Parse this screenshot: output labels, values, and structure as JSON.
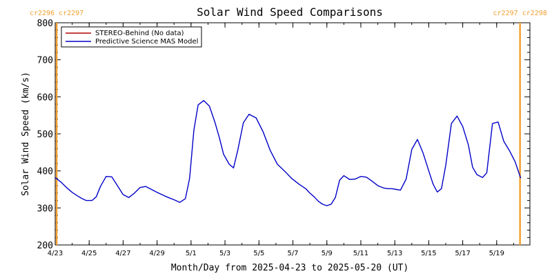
{
  "chart_data": {
    "type": "line",
    "title": "Solar Wind Speed Comparisons",
    "xlabel": "Month/Day from 2025-04-23 to 2025-05-20 (UT)",
    "ylabel": "Solar Wind Speed (km/s)",
    "ylim": [
      200,
      800
    ],
    "yticks": [
      200,
      300,
      400,
      500,
      600,
      700,
      800
    ],
    "xlim": [
      "2025-04-23",
      "2025-05-20"
    ],
    "xticks": [
      {
        "date": "2025-04-23",
        "label": "4/23"
      },
      {
        "date": "2025-04-25",
        "label": "4/25"
      },
      {
        "date": "2025-04-27",
        "label": "4/27"
      },
      {
        "date": "2025-04-29",
        "label": "4/29"
      },
      {
        "date": "2025-05-01",
        "label": "5/1"
      },
      {
        "date": "2025-05-03",
        "label": "5/3"
      },
      {
        "date": "2025-05-05",
        "label": "5/5"
      },
      {
        "date": "2025-05-07",
        "label": "5/7"
      },
      {
        "date": "2025-05-09",
        "label": "5/9"
      },
      {
        "date": "2025-05-11",
        "label": "5/11"
      },
      {
        "date": "2025-05-13",
        "label": "5/13"
      },
      {
        "date": "2025-05-15",
        "label": "5/15"
      },
      {
        "date": "2025-05-17",
        "label": "5/17"
      },
      {
        "date": "2025-05-19",
        "label": "5/19"
      }
    ],
    "legend_position": "top-left",
    "carrington_markers": [
      {
        "left_label": "cr2296",
        "right_label": "cr2297",
        "date": "2025-04-23T02:00",
        "color": "#f0a030"
      },
      {
        "left_label": "cr2297",
        "right_label": "cr2298",
        "date": "2025-05-20T09:00",
        "color": "#f0a030"
      }
    ],
    "series": [
      {
        "name": "STEREO-Behind (No data)",
        "color": "#b00000",
        "x": [],
        "y": []
      },
      {
        "name": "Predictive Science MAS Model",
        "color": "#0000c8",
        "x": [
          "2025-04-23T00:00",
          "2025-04-23T08:00",
          "2025-04-23T16:00",
          "2025-04-24T00:00",
          "2025-04-24T08:00",
          "2025-04-24T14:00",
          "2025-04-24T20:00",
          "2025-04-25T04:00",
          "2025-04-25T10:00",
          "2025-04-25T16:00",
          "2025-04-26T00:00",
          "2025-04-26T08:00",
          "2025-04-26T16:00",
          "2025-04-27T00:00",
          "2025-04-27T08:00",
          "2025-04-27T16:00",
          "2025-04-28T00:00",
          "2025-04-28T08:00",
          "2025-04-28T16:00",
          "2025-04-29T00:00",
          "2025-04-29T08:00",
          "2025-04-29T16:00",
          "2025-04-30T00:00",
          "2025-04-30T08:00",
          "2025-04-30T16:00",
          "2025-04-30T22:00",
          "2025-05-01T04:00",
          "2025-05-01T10:00",
          "2025-05-01T18:00",
          "2025-05-02T02:00",
          "2025-05-02T10:00",
          "2025-05-02T16:00",
          "2025-05-02T22:00",
          "2025-05-03T06:00",
          "2025-05-03T12:00",
          "2025-05-03T18:00",
          "2025-05-04T02:00",
          "2025-05-04T10:00",
          "2025-05-04T20:00",
          "2025-05-05T06:00",
          "2025-05-05T16:00",
          "2025-05-06T02:00",
          "2025-05-06T12:00",
          "2025-05-06T22:00",
          "2025-05-07T08:00",
          "2025-05-07T18:00",
          "2025-05-08T00:00",
          "2025-05-08T06:00",
          "2025-05-08T12:00",
          "2025-05-08T18:00",
          "2025-05-09T00:00",
          "2025-05-09T06:00",
          "2025-05-09T12:00",
          "2025-05-09T18:00",
          "2025-05-10T00:00",
          "2025-05-10T08:00",
          "2025-05-10T16:00",
          "2025-05-11T00:00",
          "2025-05-11T08:00",
          "2025-05-11T16:00",
          "2025-05-12T00:00",
          "2025-05-12T08:00",
          "2025-05-12T14:00",
          "2025-05-12T20:00",
          "2025-05-13T02:00",
          "2025-05-13T08:00",
          "2025-05-13T16:00",
          "2025-05-14T00:00",
          "2025-05-14T08:00",
          "2025-05-14T16:00",
          "2025-05-15T00:00",
          "2025-05-15T06:00",
          "2025-05-15T12:00",
          "2025-05-15T18:00",
          "2025-05-16T00:00",
          "2025-05-16T08:00",
          "2025-05-16T16:00",
          "2025-05-17T00:00",
          "2025-05-17T08:00",
          "2025-05-17T14:00",
          "2025-05-17T20:00",
          "2025-05-18T04:00",
          "2025-05-18T10:00",
          "2025-05-18T18:00",
          "2025-05-19T02:00",
          "2025-05-19T10:00",
          "2025-05-19T18:00",
          "2025-05-20T02:00",
          "2025-05-20T10:00"
        ],
        "y": [
          382,
          370,
          355,
          342,
          332,
          325,
          320,
          320,
          330,
          358,
          385,
          384,
          360,
          336,
          328,
          340,
          355,
          358,
          350,
          342,
          335,
          328,
          322,
          315,
          325,
          380,
          510,
          578,
          590,
          575,
          530,
          490,
          445,
          418,
          408,
          455,
          530,
          553,
          543,
          505,
          455,
          418,
          400,
          380,
          365,
          352,
          340,
          330,
          318,
          310,
          306,
          310,
          328,
          375,
          387,
          377,
          378,
          385,
          383,
          372,
          360,
          354,
          352,
          352,
          350,
          348,
          378,
          458,
          485,
          448,
          400,
          365,
          343,
          352,
          415,
          528,
          548,
          520,
          470,
          410,
          390,
          382,
          395,
          528,
          532,
          480,
          455,
          425,
          380
        ]
      }
    ]
  }
}
